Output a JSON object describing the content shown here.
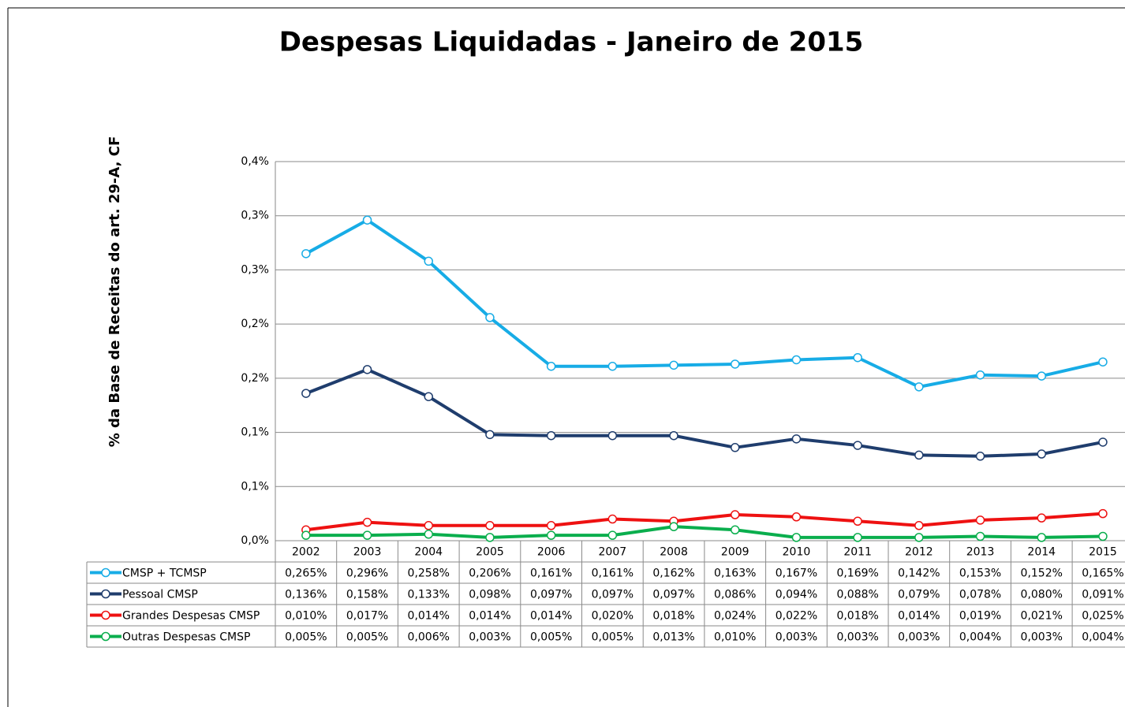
{
  "chart_data": {
    "type": "line",
    "title": "Despesas Liquidadas - Janeiro de 2015",
    "y_label": "% da Base de Receitas do art. 29-A, CF",
    "categories": [
      "2002",
      "2003",
      "2004",
      "2005",
      "2006",
      "2007",
      "2008",
      "2009",
      "2010",
      "2011",
      "2012",
      "2013",
      "2014",
      "2015"
    ],
    "ylim": [
      0,
      0.35
    ],
    "yticks": [
      {
        "value": 0,
        "label": "0,0%"
      },
      {
        "value": 0.05,
        "label": "0,1%"
      },
      {
        "value": 0.1,
        "label": "0,1%"
      },
      {
        "value": 0.15,
        "label": "0,2%"
      },
      {
        "value": 0.2,
        "label": "0,2%"
      },
      {
        "value": 0.25,
        "label": "0,3%"
      },
      {
        "value": 0.3,
        "label": "0,3%"
      },
      {
        "value": 0.35,
        "label": "0,4%"
      }
    ],
    "grid": true,
    "series": [
      {
        "name": "CMSP + TCMSP",
        "color": "#17ace6",
        "values": [
          0.265,
          0.296,
          0.258,
          0.206,
          0.161,
          0.161,
          0.162,
          0.163,
          0.167,
          0.169,
          0.142,
          0.153,
          0.152,
          0.165
        ],
        "value_labels": [
          "0,265%",
          "0,296%",
          "0,258%",
          "0,206%",
          "0,161%",
          "0,161%",
          "0,162%",
          "0,163%",
          "0,167%",
          "0,169%",
          "0,142%",
          "0,153%",
          "0,152%",
          "0,165%"
        ]
      },
      {
        "name": "Pessoal CMSP",
        "color": "#1f3d6d",
        "values": [
          0.136,
          0.158,
          0.133,
          0.098,
          0.097,
          0.097,
          0.097,
          0.086,
          0.094,
          0.088,
          0.079,
          0.078,
          0.08,
          0.091
        ],
        "value_labels": [
          "0,136%",
          "0,158%",
          "0,133%",
          "0,098%",
          "0,097%",
          "0,097%",
          "0,097%",
          "0,086%",
          "0,094%",
          "0,088%",
          "0,079%",
          "0,078%",
          "0,080%",
          "0,091%"
        ]
      },
      {
        "name": "Grandes Despesas CMSP",
        "color": "#ee1111",
        "values": [
          0.01,
          0.017,
          0.014,
          0.014,
          0.014,
          0.02,
          0.018,
          0.024,
          0.022,
          0.018,
          0.014,
          0.019,
          0.021,
          0.025
        ],
        "value_labels": [
          "0,010%",
          "0,017%",
          "0,014%",
          "0,014%",
          "0,014%",
          "0,020%",
          "0,018%",
          "0,024%",
          "0,022%",
          "0,018%",
          "0,014%",
          "0,019%",
          "0,021%",
          "0,025%"
        ]
      },
      {
        "name": "Outras Despesas CMSP",
        "color": "#0aae4d",
        "values": [
          0.005,
          0.005,
          0.006,
          0.003,
          0.005,
          0.005,
          0.013,
          0.01,
          0.003,
          0.003,
          0.003,
          0.004,
          0.003,
          0.004
        ],
        "value_labels": [
          "0,005%",
          "0,005%",
          "0,006%",
          "0,003%",
          "0,005%",
          "0,005%",
          "0,013%",
          "0,010%",
          "0,003%",
          "0,003%",
          "0,003%",
          "0,004%",
          "0,003%",
          "0,004%"
        ]
      }
    ]
  }
}
